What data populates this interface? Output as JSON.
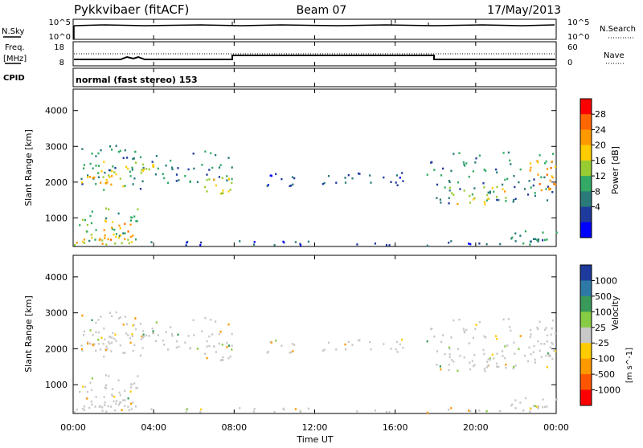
{
  "header": {
    "title": "Pykkvibaer (fitACF)",
    "beam": "Beam 07",
    "date": "17/May/2013"
  },
  "top_panels": {
    "nsky_label": "N.Sky",
    "nsky_ticks": [
      "10^5",
      "10^0"
    ],
    "nsearch_label": "N.Search",
    "nsearch_ticks": [
      "10^5",
      "10^0"
    ],
    "freq_label": "Freq.",
    "freq_unit": "[MHz]",
    "freq_ticks": [
      "18",
      "8"
    ],
    "nave_label": "Nave",
    "nave_ticks": [
      "60",
      "0"
    ],
    "cpid_label": "CPID",
    "cpid_text": "normal (fast stereo) 153"
  },
  "axis": {
    "y_label": "Slant Range [km]",
    "y_ticks": [
      "4000",
      "3000",
      "2000",
      "1000"
    ],
    "y_tick_values": [
      4000,
      3000,
      2000,
      1000
    ],
    "ylim": [
      200,
      4600
    ],
    "x_ticks": [
      "00:00",
      "04:00",
      "08:00",
      "12:00",
      "16:00",
      "20:00",
      "00:00"
    ],
    "x_tick_hours": [
      0,
      4,
      8,
      12,
      16,
      20,
      24
    ],
    "xlim": [
      0,
      24
    ],
    "x_label": "Time UT"
  },
  "power_colorbar": {
    "label": "Power [dB]",
    "ticks": [
      "28",
      "24",
      "20",
      "16",
      "12",
      "8",
      "4"
    ],
    "colors": [
      "#ff0000",
      "#ff6600",
      "#ff9900",
      "#ffcc00",
      "#99cc33",
      "#33aa66",
      "#2a7a7a",
      "#1e3a9c",
      "#0000ff"
    ]
  },
  "velocity_colorbar": {
    "label": "Velocity",
    "unit": "[m s^-1]",
    "ticks": [
      "1000",
      "500",
      "100",
      "25",
      "-25",
      "-100",
      "-500",
      "-1000"
    ],
    "colors": [
      "#1e3a9c",
      "#2e7aa6",
      "#3a9a5a",
      "#88cc44",
      "#c8c8c8",
      "#ffcc00",
      "#ff9900",
      "#ff5500",
      "#ff0000"
    ]
  },
  "chart_data": {
    "type": "heatmap",
    "title": "Pykkvibaer (fitACF)",
    "x_unit": "hours UT",
    "y_unit": "km",
    "scatter_regions": [
      {
        "t0": 0.0,
        "t1": 4.3,
        "r0": 1800,
        "r1": 3100,
        "power": 10
      },
      {
        "t0": 0.3,
        "t1": 2.5,
        "r0": 1900,
        "r1": 2200,
        "power": 20
      },
      {
        "t0": 1.2,
        "t1": 4.0,
        "r0": 2200,
        "r1": 2600,
        "power": 18
      },
      {
        "t0": 4.0,
        "t1": 8.0,
        "r0": 2000,
        "r1": 2900,
        "power": 10
      },
      {
        "t0": 6.5,
        "t1": 8.0,
        "r0": 1700,
        "r1": 2200,
        "power": 18
      },
      {
        "t0": 0.0,
        "t1": 3.2,
        "r0": 300,
        "r1": 1300,
        "power": 12
      },
      {
        "t0": 1.5,
        "t1": 3.0,
        "r0": 400,
        "r1": 1000,
        "power": 22
      },
      {
        "t0": 0.0,
        "t1": 3.0,
        "r0": 250,
        "r1": 500,
        "power": 20
      },
      {
        "t0": 9.5,
        "t1": 16.5,
        "r0": 1900,
        "r1": 2300,
        "power": 6
      },
      {
        "t0": 17.5,
        "t1": 24.0,
        "r0": 1400,
        "r1": 2900,
        "power": 10
      },
      {
        "t0": 18.5,
        "t1": 21.5,
        "r0": 1400,
        "r1": 1900,
        "power": 18
      },
      {
        "t0": 22.5,
        "t1": 24.0,
        "r0": 1800,
        "r1": 2700,
        "power": 22
      },
      {
        "t0": 21.5,
        "t1": 24.0,
        "r0": 250,
        "r1": 700,
        "power": 10
      },
      {
        "t0": 3.0,
        "t1": 22.0,
        "r0": 250,
        "r1": 380,
        "power": 6
      }
    ]
  }
}
